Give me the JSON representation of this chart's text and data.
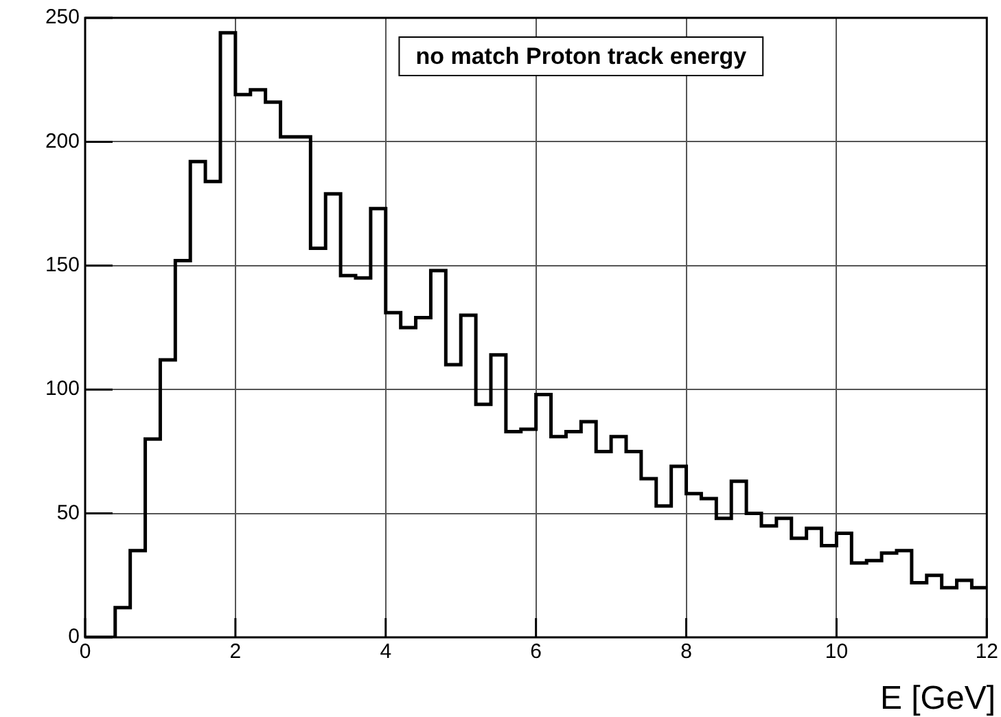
{
  "chart_data": {
    "type": "histogram",
    "title": "no match Proton track energy",
    "xlabel": "E [GeV]",
    "bins": [
      0,
      0.2,
      0.4,
      0.6,
      0.8,
      1,
      1.2,
      1.4,
      1.6,
      1.8,
      2,
      2.2,
      2.4,
      2.6,
      2.8,
      3,
      3.2,
      3.4,
      3.6,
      3.8,
      4,
      4.2,
      4.4,
      4.6,
      4.8,
      5,
      5.2,
      5.4,
      5.6,
      5.8,
      6,
      6.2,
      6.4,
      6.6,
      6.8,
      7,
      7.2,
      7.4,
      7.6,
      7.8,
      8,
      8.2,
      8.4,
      8.6,
      8.8,
      9,
      9.2,
      9.4,
      9.6,
      9.8,
      10,
      10.2,
      10.4,
      10.6,
      10.8,
      11,
      11.2,
      11.4,
      11.6,
      11.8,
      12
    ],
    "values": [
      0,
      0,
      12,
      35,
      80,
      112,
      152,
      192,
      184,
      244,
      219,
      221,
      216,
      202,
      202,
      157,
      179,
      146,
      145,
      173,
      131,
      125,
      129,
      148,
      110,
      130,
      94,
      114,
      83,
      84,
      98,
      81,
      83,
      87,
      75,
      81,
      75,
      64,
      53,
      69,
      58,
      56,
      48,
      63,
      50,
      45,
      48,
      40,
      44,
      37,
      42,
      30,
      31,
      34,
      35,
      22,
      25,
      20,
      23,
      20
    ],
    "color": "#000000",
    "xlim": [
      0,
      12
    ],
    "xticks": [
      0,
      2,
      4,
      6,
      8,
      10,
      12
    ],
    "ylim": [
      0,
      250
    ],
    "yticks": [
      0,
      50,
      100,
      150,
      200,
      250
    ],
    "grid": true
  }
}
